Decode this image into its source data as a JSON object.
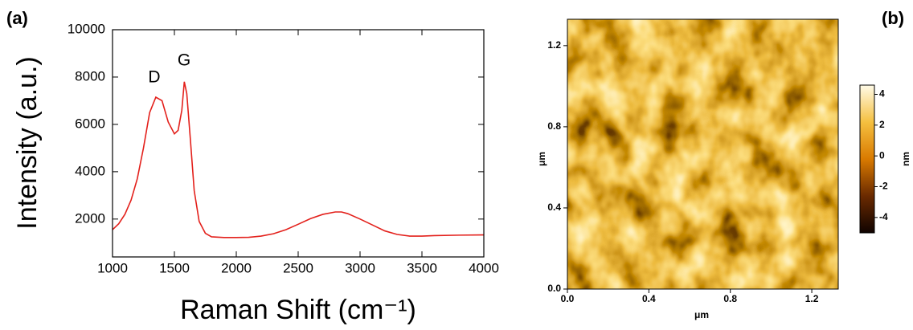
{
  "chart_data": [
    {
      "type": "line",
      "panel_label": "(a)",
      "x_label": "Raman Shift (cm⁻¹)",
      "y_label": "Intensity (a.u.)",
      "annotations": [
        "D",
        "G"
      ],
      "color": "#e3201b",
      "x": [
        1000,
        1050,
        1100,
        1150,
        1200,
        1250,
        1300,
        1350,
        1400,
        1450,
        1500,
        1530,
        1560,
        1580,
        1600,
        1630,
        1660,
        1700,
        1750,
        1800,
        1900,
        2000,
        2100,
        2200,
        2300,
        2400,
        2500,
        2600,
        2700,
        2800,
        2850,
        2900,
        3000,
        3100,
        3200,
        3300,
        3400,
        3500,
        3600,
        3800,
        4000
      ],
      "values": [
        1550,
        1800,
        2200,
        2800,
        3700,
        5000,
        6500,
        7150,
        7000,
        6100,
        5600,
        5750,
        6600,
        7800,
        7300,
        5300,
        3200,
        1900,
        1400,
        1250,
        1220,
        1220,
        1230,
        1280,
        1380,
        1550,
        1780,
        2020,
        2200,
        2300,
        2300,
        2230,
        2000,
        1750,
        1500,
        1350,
        1280,
        1280,
        1300,
        1320,
        1330
      ],
      "xlim": [
        1000,
        4000
      ],
      "ylim": [
        400,
        10000
      ],
      "xticks": [
        1000,
        1500,
        2000,
        2500,
        3000,
        3500,
        4000
      ],
      "yticks": [
        2000,
        4000,
        6000,
        8000,
        10000
      ]
    },
    {
      "type": "image",
      "panel_label": "(b)",
      "x_label": "μm",
      "y_label": "μm",
      "xlim": [
        0,
        1.33
      ],
      "ylim": [
        0,
        1.33
      ],
      "xticks": [
        {
          "value": 0,
          "label": "0.0"
        },
        0.4,
        0.8,
        1.2
      ],
      "yticks": [
        {
          "value": 0,
          "label": "0.0"
        },
        0.4,
        0.8,
        1.2
      ],
      "colorbar": {
        "label": "nm",
        "lim": [
          -5,
          4.6
        ],
        "ticks": [
          -4,
          -2,
          0,
          2,
          4
        ]
      }
    }
  ]
}
